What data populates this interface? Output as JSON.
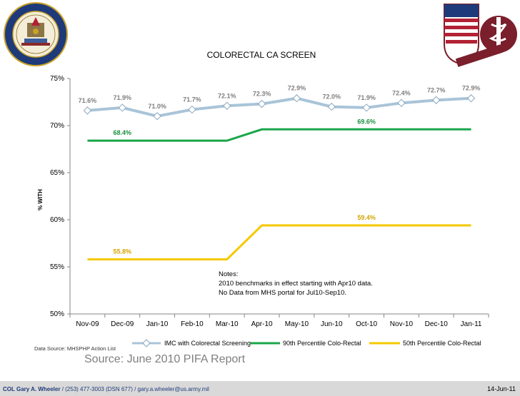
{
  "left_seal_icon": "us-army-seal-icon",
  "right_seal_icon": "medical-caduceus-crest-icon",
  "chart_data": {
    "type": "line",
    "title": "COLORECTAL CA SCREEN",
    "ylabel": "% WITH",
    "xlabel": "",
    "categories": [
      "Nov-09",
      "Dec-09",
      "Jan-10",
      "Feb-10",
      "Mar-10",
      "Apr-10",
      "May-10",
      "Jun-10",
      "Oct-10",
      "Nov-10",
      "Dec-10",
      "Jan-11"
    ],
    "ylim": [
      50,
      75
    ],
    "yticks": [
      50,
      55,
      60,
      65,
      70,
      75
    ],
    "ytick_labels": [
      "50%",
      "55%",
      "60%",
      "65%",
      "70%",
      "75%"
    ],
    "grid": false,
    "legend_position": "bottom",
    "series": [
      {
        "name": "IMC with Colorectal Screening",
        "color": "#a9c4d8",
        "marker": "diamond",
        "values": [
          71.6,
          71.9,
          71.0,
          71.7,
          72.1,
          72.3,
          72.9,
          72.0,
          71.9,
          72.4,
          72.7,
          72.9
        ],
        "labels": [
          "71.6%",
          "71.9%",
          "71.0%",
          "71.7%",
          "72.1%",
          "72.3%",
          "72.9%",
          "72.0%",
          "71.9%",
          "72.4%",
          "72.7%",
          "72.9%"
        ]
      },
      {
        "name": "90th Percentile Colo-Rectal",
        "color": "#1aa64a",
        "values": [
          68.4,
          68.4,
          68.4,
          68.4,
          68.4,
          69.6,
          69.6,
          69.6,
          69.6,
          69.6,
          69.6,
          69.6
        ],
        "annotations": [
          {
            "index": 1,
            "text": "68.4%"
          },
          {
            "index": 8,
            "text": "69.6%"
          }
        ]
      },
      {
        "name": "50th Percentile Colo-Rectal",
        "color": "#f5c800",
        "values": [
          55.8,
          55.8,
          55.8,
          55.8,
          55.8,
          59.4,
          59.4,
          59.4,
          59.4,
          59.4,
          59.4,
          59.4
        ],
        "annotations": [
          {
            "index": 1,
            "text": "55.8%"
          },
          {
            "index": 8,
            "text": "59.4%"
          }
        ]
      }
    ],
    "notes": [
      "Notes:",
      "2010 benchmarks in effect starting with Apr10 data.",
      "No Data from MHS portal for Jul10-Sep10."
    ]
  },
  "data_source": "Data Source: MHSPHP Action List",
  "source_caption": "Source: June 2010 PIFA Report",
  "footer": {
    "name": "COL Gary A. Wheeler",
    "contact": " / (253) 477-3003 (DSN 677) / gary.a.wheeler@us.army.mil",
    "date": "14-Jun-11"
  }
}
